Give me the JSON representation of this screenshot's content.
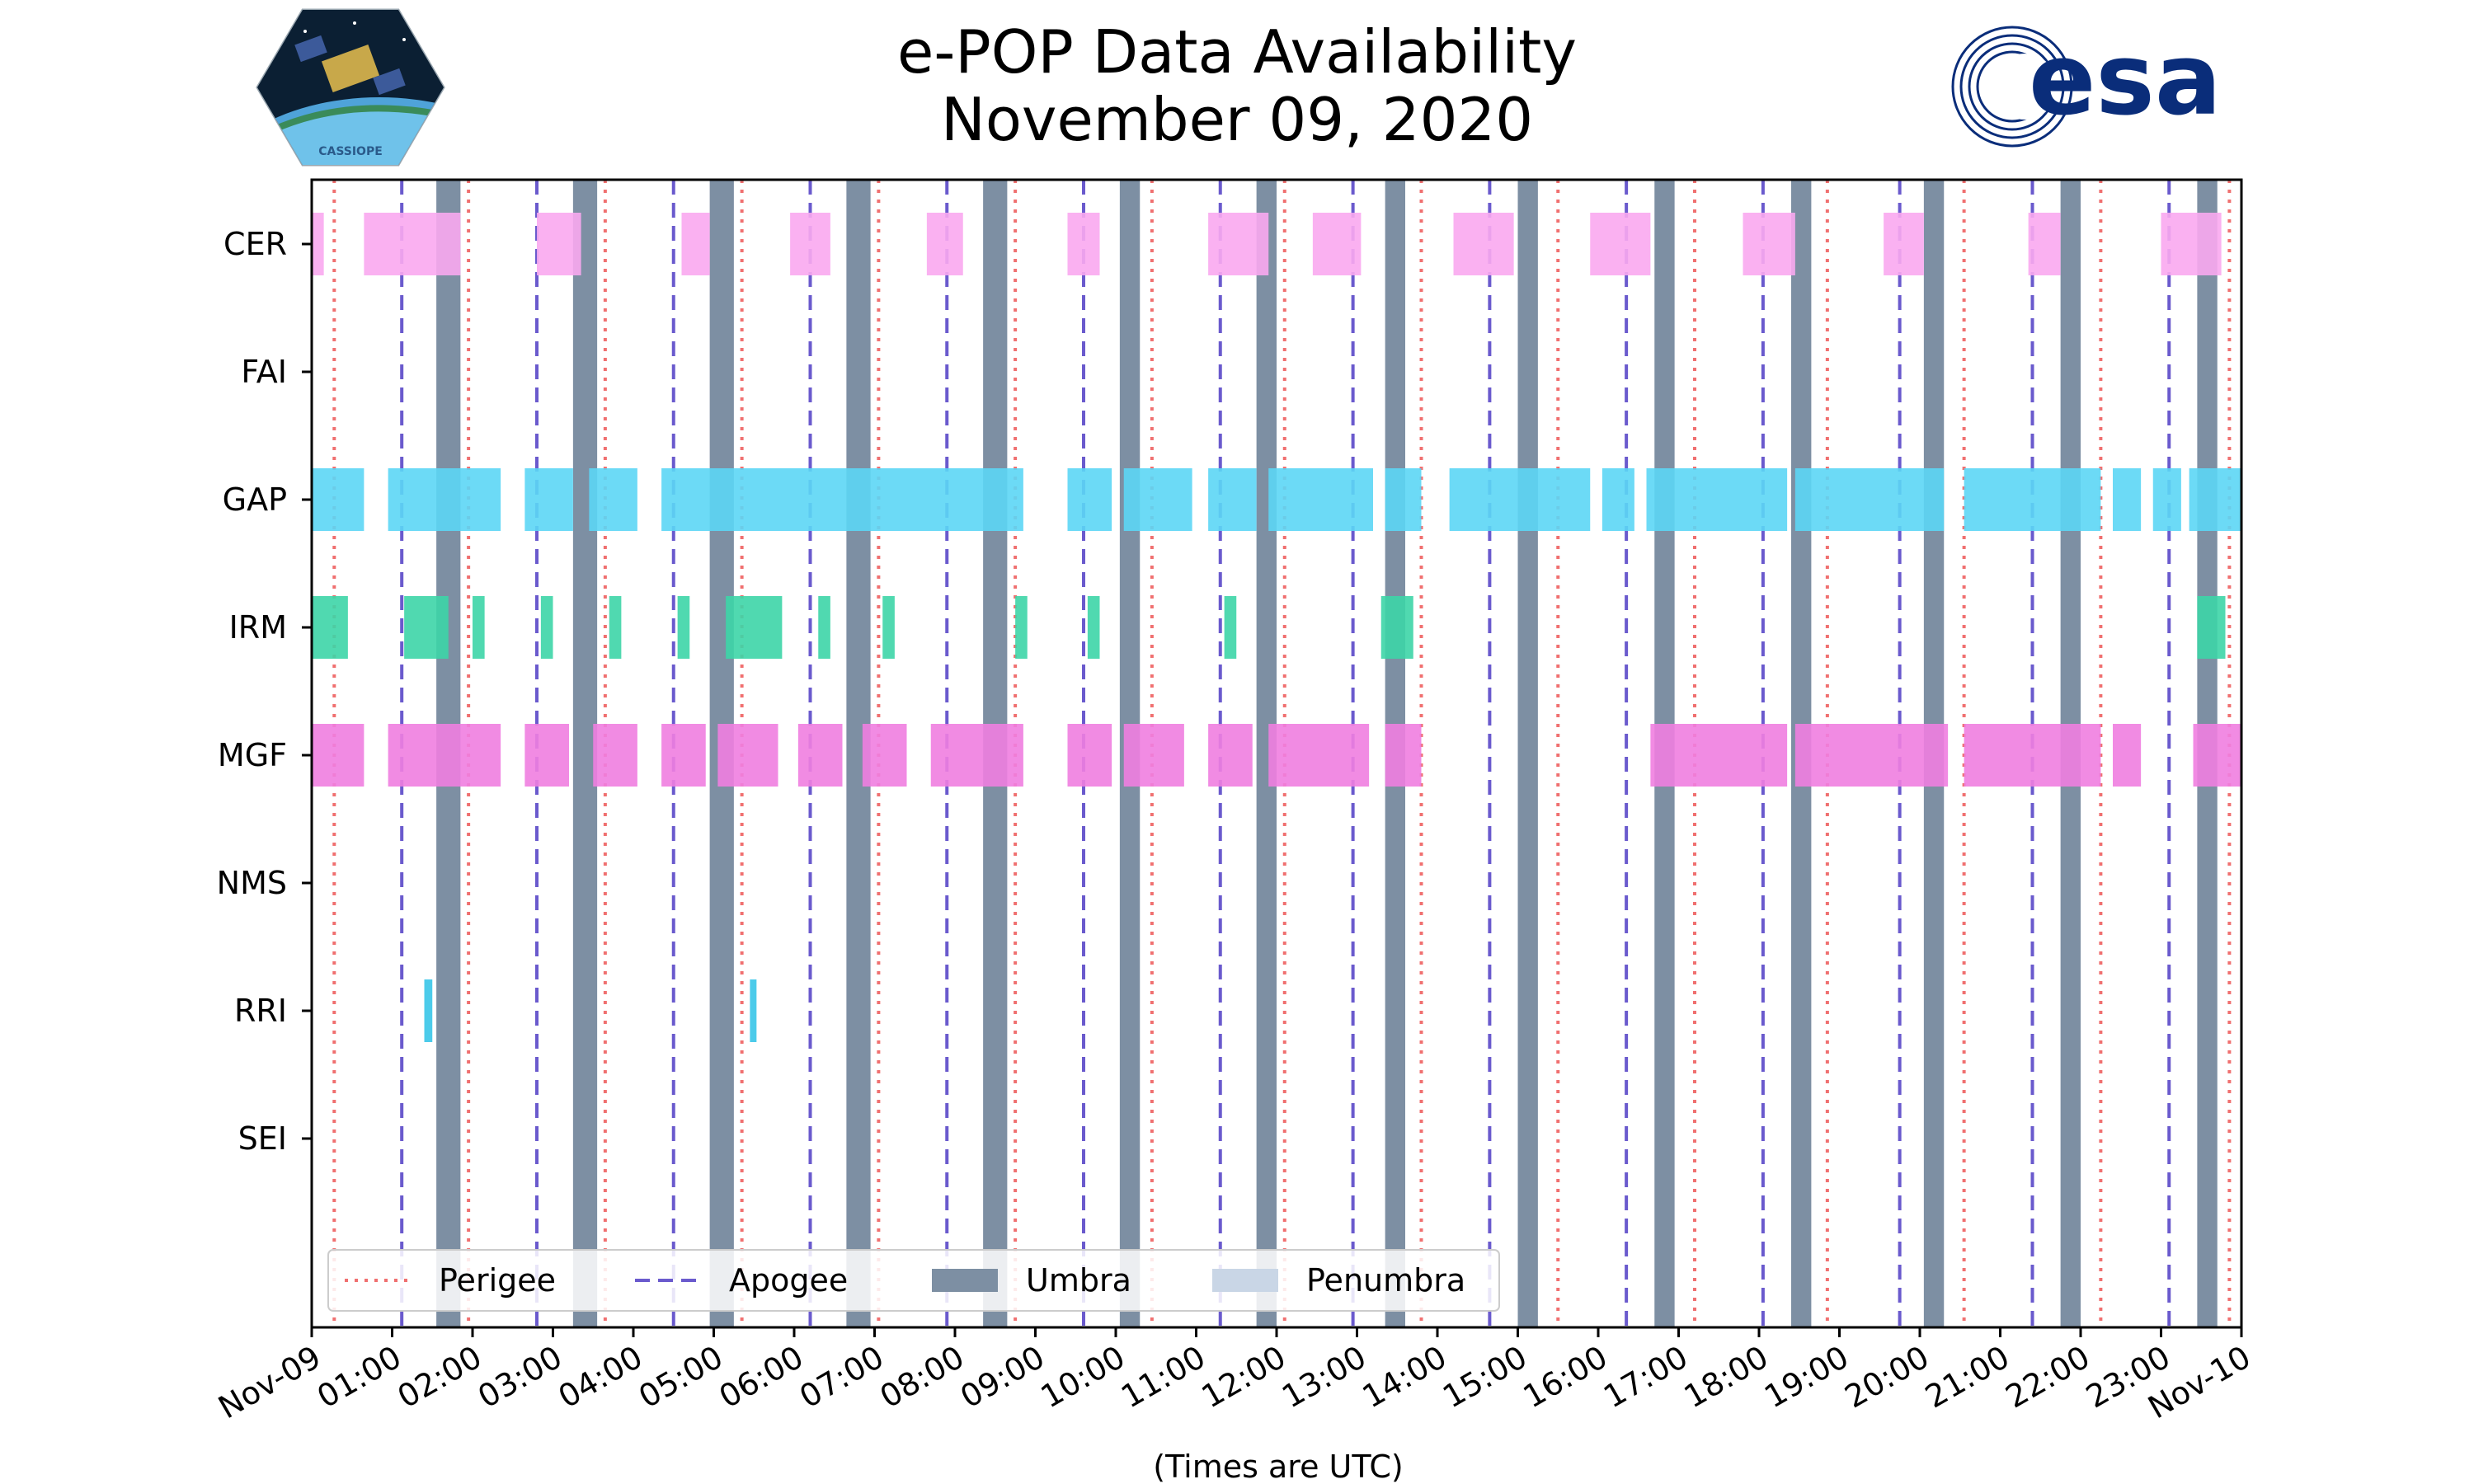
{
  "title_line1": "e-POP Data Availability",
  "title_line2": "November 09, 2020",
  "logos": {
    "left_text": "CASSIOPE",
    "right_text": "esa"
  },
  "colors": {
    "CER": "#f9a8f0",
    "GAP": "#5cd6f5",
    "IRM": "#3dd5a7",
    "MGF": "#f07ee0",
    "RRI": "#38c5e8",
    "umbra": "#7d8fa3",
    "penumbra": "#c9d6e6",
    "perigee": "#f07070",
    "apogee": "#6a5acd",
    "esa_blue": "#0a2d7a"
  },
  "chart_data": {
    "type": "timeline",
    "xlabel": "(Times are UTC)",
    "xlim": [
      0,
      24
    ],
    "x_ticks": [
      0,
      1,
      2,
      3,
      4,
      5,
      6,
      7,
      8,
      9,
      10,
      11,
      12,
      13,
      14,
      15,
      16,
      17,
      18,
      19,
      20,
      21,
      22,
      23,
      24
    ],
    "x_tick_labels": [
      "Nov-09",
      "01:00",
      "02:00",
      "03:00",
      "04:00",
      "05:00",
      "06:00",
      "07:00",
      "08:00",
      "09:00",
      "10:00",
      "11:00",
      "12:00",
      "13:00",
      "14:00",
      "15:00",
      "16:00",
      "17:00",
      "18:00",
      "19:00",
      "20:00",
      "21:00",
      "22:00",
      "23:00",
      "Nov-10"
    ],
    "instruments": [
      "CER",
      "FAI",
      "GAP",
      "IRM",
      "MGF",
      "NMS",
      "RRI",
      "SEI"
    ],
    "intervals": {
      "CER": [
        [
          0,
          0.15
        ],
        [
          0.65,
          1.85
        ],
        [
          2.8,
          3.35
        ],
        [
          4.6,
          4.95
        ],
        [
          5.95,
          6.45
        ],
        [
          7.65,
          8.1
        ],
        [
          9.4,
          9.8
        ],
        [
          11.15,
          11.9
        ],
        [
          12.45,
          13.05
        ],
        [
          14.2,
          14.95
        ],
        [
          15.9,
          16.65
        ],
        [
          17.8,
          18.45
        ],
        [
          19.55,
          20.05
        ],
        [
          21.35,
          21.75
        ],
        [
          23,
          23.75
        ]
      ],
      "FAI": [],
      "GAP": [
        [
          0,
          0.65
        ],
        [
          0.95,
          2.35
        ],
        [
          2.65,
          3.25
        ],
        [
          3.45,
          4.05
        ],
        [
          4.35,
          8.85
        ],
        [
          9.4,
          9.95
        ],
        [
          10.1,
          10.95
        ],
        [
          11.15,
          11.75
        ],
        [
          11.9,
          13.2
        ],
        [
          13.35,
          13.8
        ],
        [
          14.15,
          15.9
        ],
        [
          16.05,
          16.45
        ],
        [
          16.6,
          18.35
        ],
        [
          18.45,
          20.3
        ],
        [
          20.55,
          22.25
        ],
        [
          22.4,
          22.75
        ],
        [
          22.9,
          23.25
        ],
        [
          23.35,
          24
        ]
      ],
      "IRM": [
        [
          0,
          0.45
        ],
        [
          1.15,
          1.7
        ],
        [
          2,
          2.15
        ],
        [
          2.85,
          3
        ],
        [
          3.7,
          3.85
        ],
        [
          4.55,
          4.7
        ],
        [
          5.15,
          5.85
        ],
        [
          6.3,
          6.45
        ],
        [
          7.1,
          7.25
        ],
        [
          8.75,
          8.9
        ],
        [
          9.65,
          9.8
        ],
        [
          11.35,
          11.5
        ],
        [
          13.3,
          13.7
        ],
        [
          23.45,
          23.8
        ]
      ],
      "MGF": [
        [
          0,
          0.65
        ],
        [
          0.95,
          2.35
        ],
        [
          2.65,
          3.2
        ],
        [
          3.5,
          4.05
        ],
        [
          4.35,
          4.9
        ],
        [
          5.05,
          5.8
        ],
        [
          6.05,
          6.6
        ],
        [
          6.85,
          7.4
        ],
        [
          7.7,
          8.85
        ],
        [
          9.4,
          9.95
        ],
        [
          10.1,
          10.85
        ],
        [
          11.15,
          11.7
        ],
        [
          11.9,
          13.15
        ],
        [
          13.35,
          13.8
        ],
        [
          16.65,
          18.35
        ],
        [
          18.45,
          20.35
        ],
        [
          20.55,
          22.25
        ],
        [
          22.4,
          22.75
        ],
        [
          23.4,
          24
        ]
      ],
      "NMS": [],
      "RRI": [
        [
          1.4,
          1.5
        ],
        [
          5.45,
          5.52
        ]
      ],
      "SEI": []
    },
    "umbra": [
      [
        1.55,
        1.85
      ],
      [
        3.25,
        3.55
      ],
      [
        4.95,
        5.25
      ],
      [
        6.65,
        6.95
      ],
      [
        8.35,
        8.65
      ],
      [
        10.05,
        10.3
      ],
      [
        11.75,
        12
      ],
      [
        13.35,
        13.6
      ],
      [
        15,
        15.25
      ],
      [
        16.7,
        16.95
      ],
      [
        18.4,
        18.65
      ],
      [
        20.05,
        20.3
      ],
      [
        21.75,
        22
      ],
      [
        23.45,
        23.7
      ]
    ],
    "perigee": [
      0.28,
      1.95,
      3.65,
      5.35,
      7.05,
      8.75,
      10.45,
      12.1,
      13.8,
      15.5,
      17.2,
      18.85,
      20.55,
      22.25,
      23.85
    ],
    "apogee": [
      1.12,
      2.8,
      4.5,
      6.2,
      7.9,
      9.6,
      11.3,
      12.95,
      14.65,
      16.35,
      18.05,
      19.75,
      21.4,
      23.1
    ],
    "legend": [
      "Perigee",
      "Apogee",
      "Umbra",
      "Penumbra"
    ],
    "legend_position": "lower-left"
  }
}
